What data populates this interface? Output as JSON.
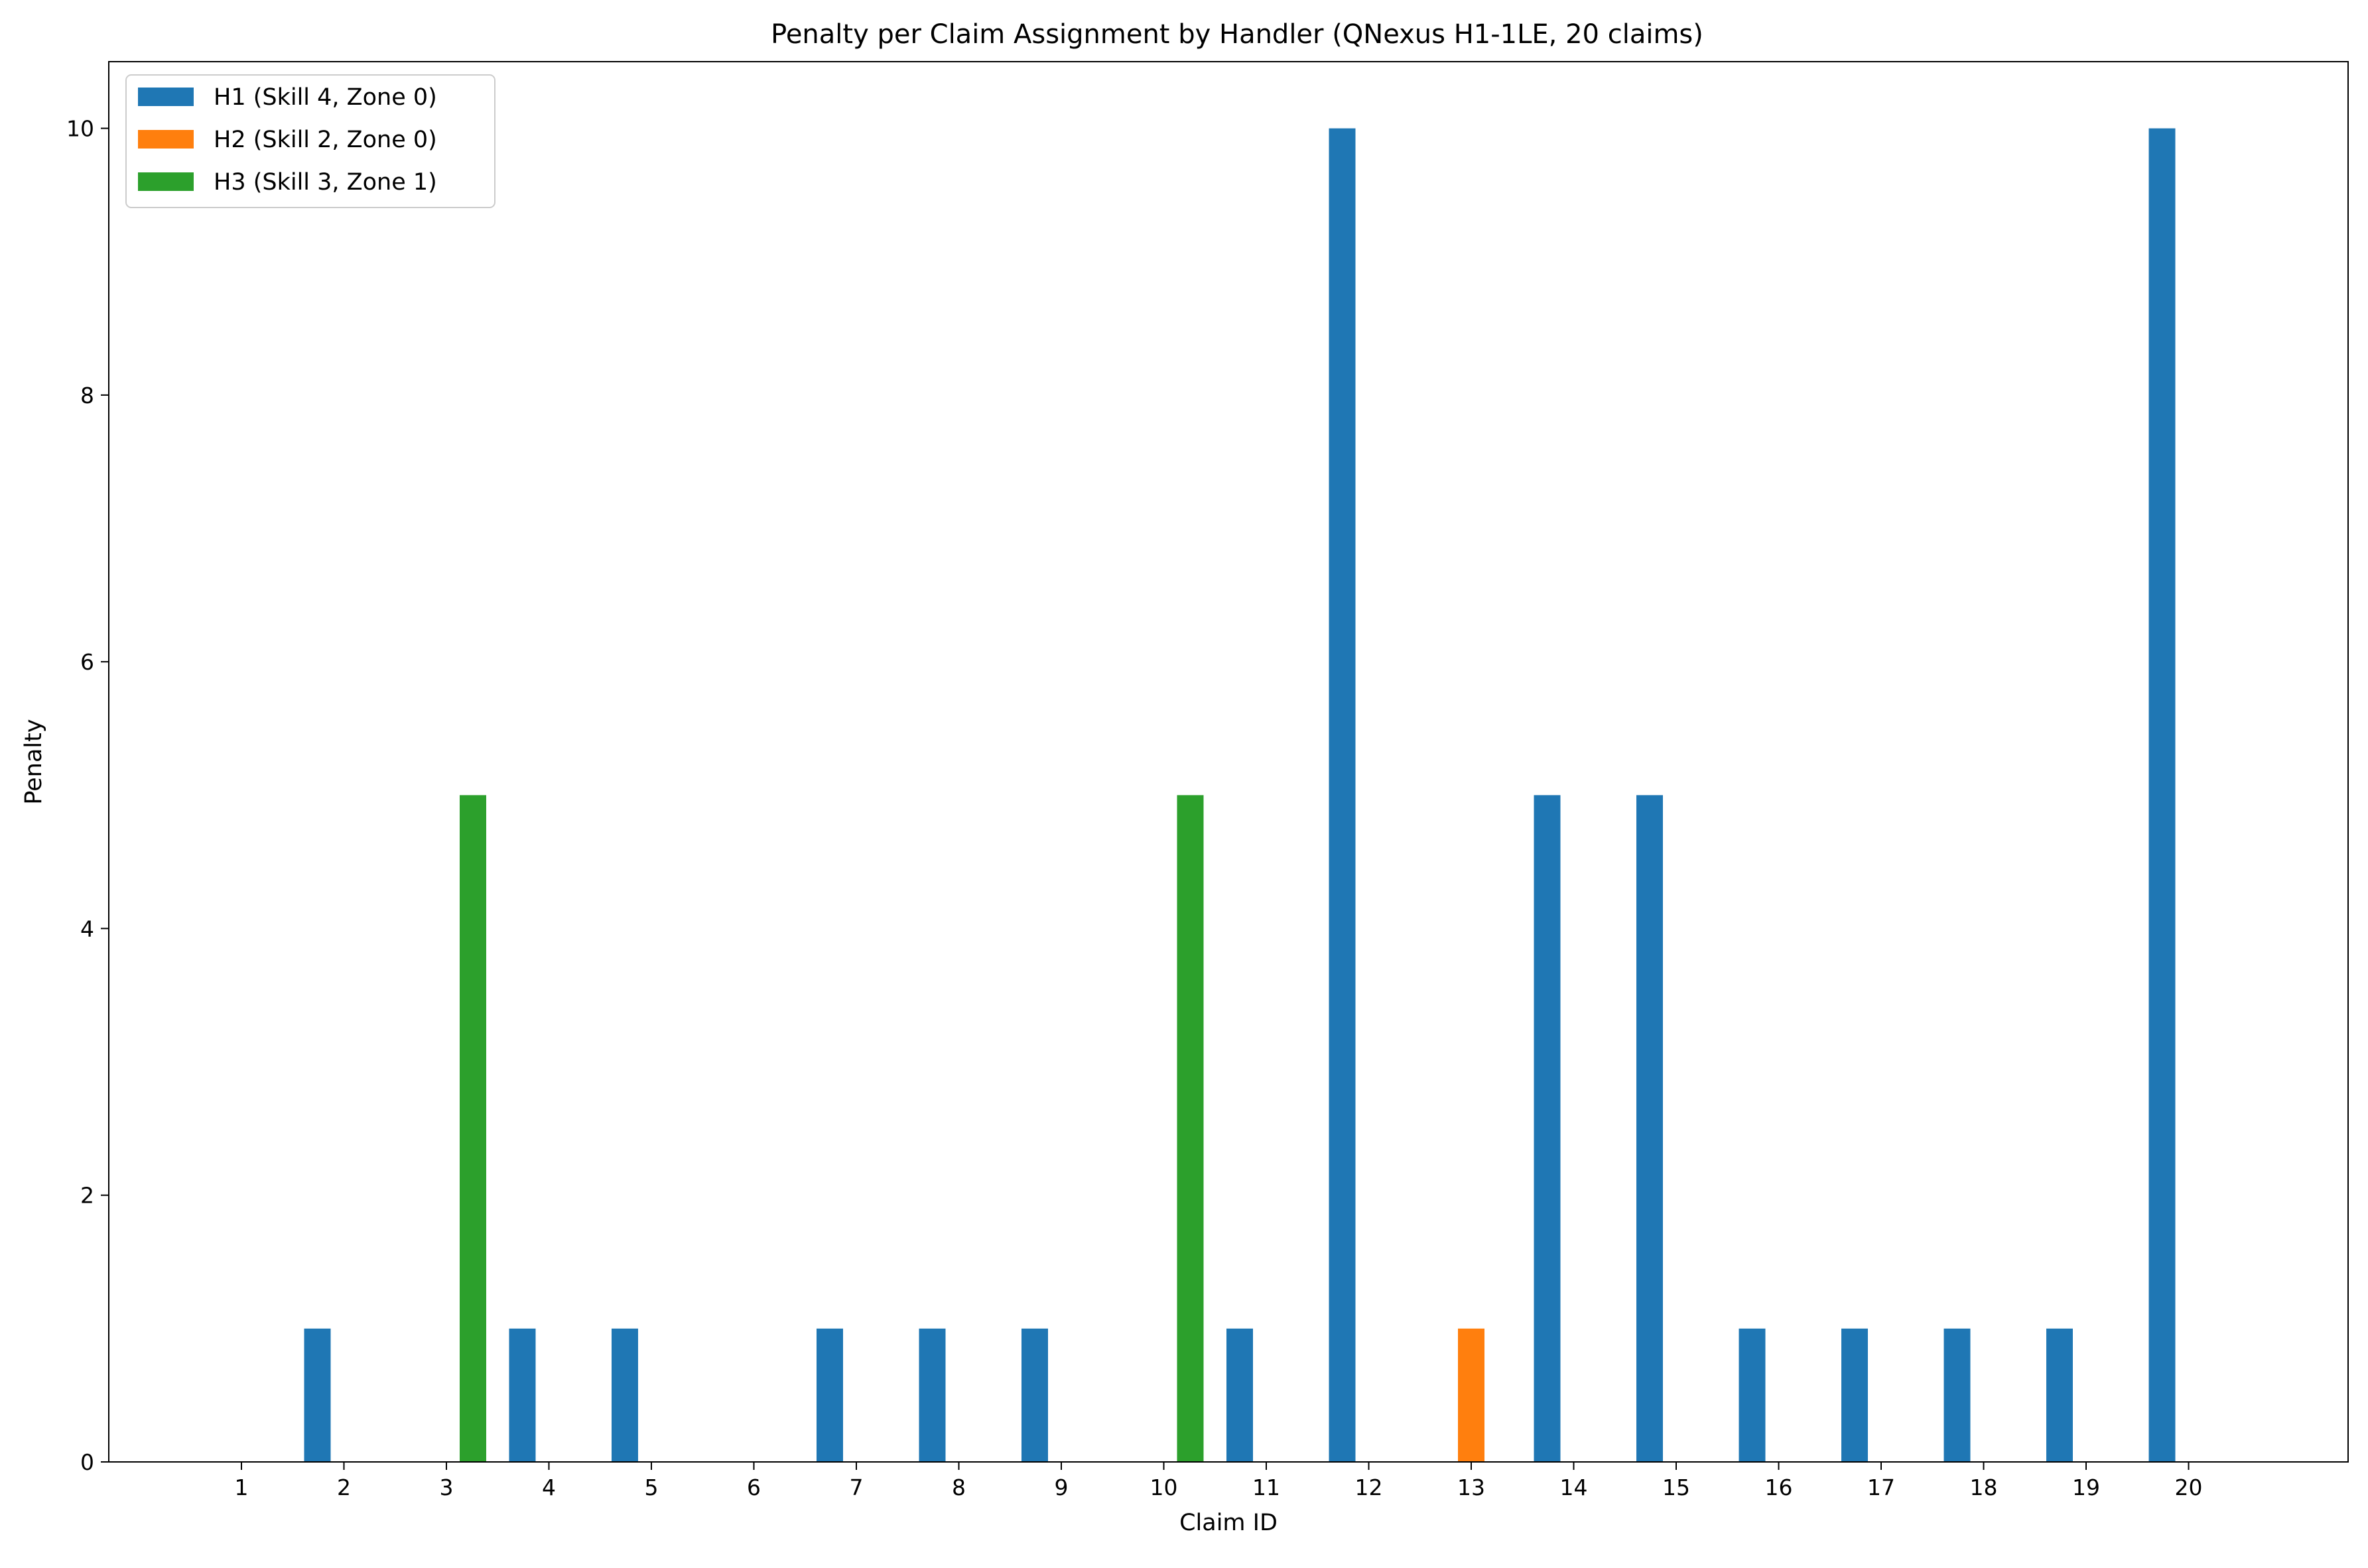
{
  "chart_data": {
    "type": "bar",
    "title": "Penalty per Claim Assignment by Handler (QNexus H1-1LE, 20 claims)",
    "xlabel": "Claim ID",
    "ylabel": "Penalty",
    "categories": [
      "1",
      "2",
      "3",
      "4",
      "5",
      "6",
      "7",
      "8",
      "9",
      "10",
      "11",
      "12",
      "13",
      "14",
      "15",
      "16",
      "17",
      "18",
      "19",
      "20"
    ],
    "ylim": [
      0,
      10.5
    ],
    "yticks": [
      0,
      2,
      4,
      6,
      8,
      10
    ],
    "grid": false,
    "legend_position": "top-left",
    "series": [
      {
        "name": "H1 (Skill 4, Zone 0)",
        "color": "#1f77b4",
        "values": [
          0,
          1,
          0,
          1,
          1,
          0,
          1,
          1,
          1,
          0,
          1,
          10,
          0,
          5,
          5,
          1,
          1,
          1,
          1,
          10
        ]
      },
      {
        "name": "H2 (Skill 2, Zone 0)",
        "color": "#ff7f0e",
        "values": [
          0,
          0,
          0,
          0,
          0,
          0,
          0,
          0,
          0,
          0,
          0,
          0,
          1,
          0,
          0,
          0,
          0,
          0,
          0,
          0
        ]
      },
      {
        "name": "H3 (Skill 3, Zone 1)",
        "color": "#2ca02c",
        "values": [
          0,
          0,
          5,
          0,
          0,
          0,
          0,
          0,
          0,
          5,
          0,
          0,
          0,
          0,
          0,
          0,
          0,
          0,
          0,
          0
        ]
      }
    ]
  }
}
